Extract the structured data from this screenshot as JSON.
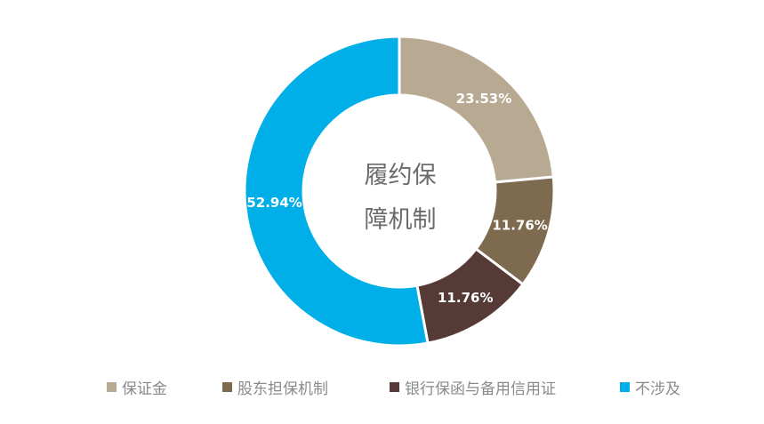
{
  "chart_data": {
    "type": "pie",
    "donut": true,
    "center_label_lines": [
      "履约保",
      "障机制"
    ],
    "slices": [
      {
        "label": "保证金",
        "value": 23.53,
        "display": "23.53%",
        "color": "#b8a992"
      },
      {
        "label": "股东担保机制",
        "value": 11.76,
        "display": "11.76%",
        "color": "#7d6a4f"
      },
      {
        "label": "银行保函与备用信用证",
        "value": 11.76,
        "display": "11.76%",
        "color": "#553a36"
      },
      {
        "label": "不涉及",
        "value": 52.94,
        "display": "52.94%",
        "color": "#00aee8"
      }
    ],
    "legend_position": "bottom"
  }
}
